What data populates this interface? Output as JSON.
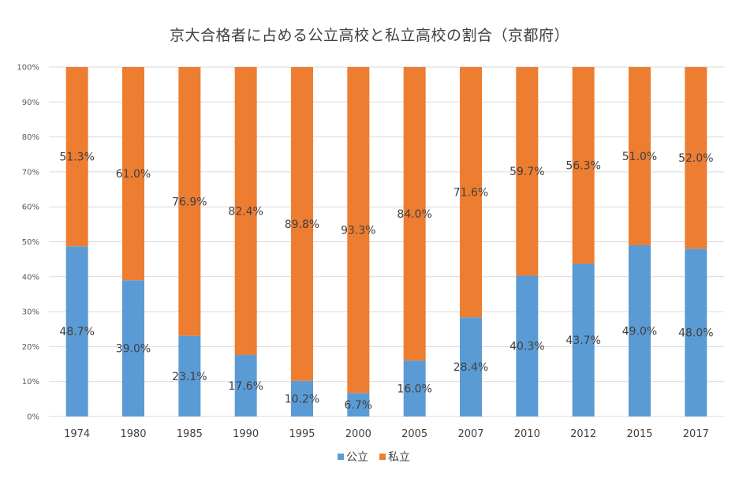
{
  "chart_data": {
    "type": "bar",
    "stacked": true,
    "title": "京大合格者に占める公立高校と私立高校の割合（京都府）",
    "categories": [
      "1974",
      "1980",
      "1985",
      "1990",
      "1995",
      "2000",
      "2005",
      "2007",
      "2010",
      "2012",
      "2015",
      "2017"
    ],
    "series": [
      {
        "name": "公立",
        "color": "#5b9bd5",
        "values": [
          48.7,
          39.0,
          23.1,
          17.6,
          10.2,
          6.7,
          16.0,
          28.4,
          40.3,
          43.7,
          49.0,
          48.0
        ],
        "labels": [
          "48.7%",
          "39.0%",
          "23.1%",
          "17.6%",
          "10.2%",
          "6.7%",
          "16.0%",
          "28.4%",
          "40.3%",
          "43.7%",
          "49.0%",
          "48.0%"
        ]
      },
      {
        "name": "私立",
        "color": "#ed7d31",
        "values": [
          51.3,
          61.0,
          76.9,
          82.4,
          89.8,
          93.3,
          84.0,
          71.6,
          59.7,
          56.3,
          51.0,
          52.0
        ],
        "labels": [
          "51.3%",
          "61.0%",
          "76.9%",
          "82.4%",
          "89.8%",
          "93.3%",
          "84.0%",
          "71.6%",
          "59.7%",
          "56.3%",
          "51.0%",
          "52.0%"
        ]
      }
    ],
    "ylim": [
      0,
      100
    ],
    "yticks": [
      "0%",
      "10%",
      "20%",
      "30%",
      "40%",
      "50%",
      "60%",
      "70%",
      "80%",
      "90%",
      "100%"
    ],
    "grid": true,
    "legend_position": "bottom"
  }
}
